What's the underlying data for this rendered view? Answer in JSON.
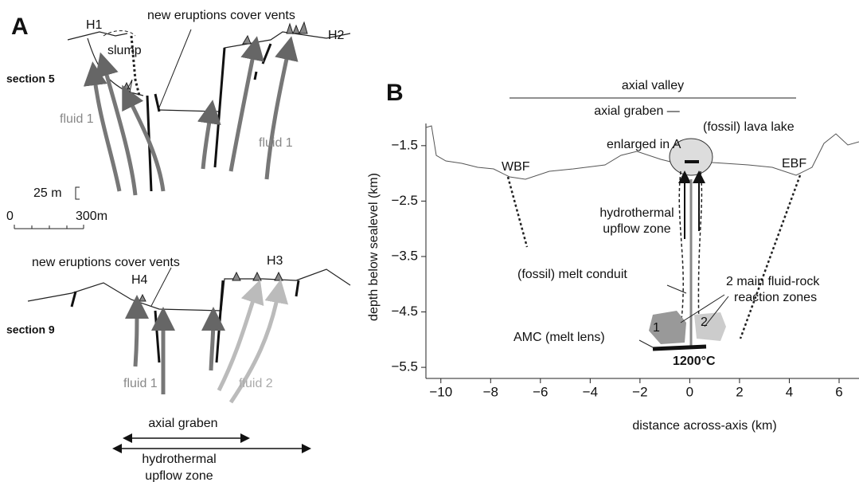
{
  "panel_a": {
    "label": "A",
    "section_5": {
      "label": "section 5",
      "h1": "H1",
      "h2": "H2",
      "annotation": "new eruptions cover vents",
      "slump": "slump",
      "fluid_left": "fluid 1",
      "fluid_right": "fluid 1"
    },
    "scale": {
      "vertical": "25 m",
      "zero": "0",
      "horizontal": "300m"
    },
    "section_9": {
      "label": "section 9",
      "annotation": "new eruptions cover vents",
      "h4": "H4",
      "h3": "H3",
      "fluid_left": "fluid 1",
      "fluid_right": "fluid 2"
    },
    "bottom": {
      "axial_graben": "axial graben",
      "hydrothermal_upflow": [
        "hydrothermal",
        "upflow zone"
      ]
    }
  },
  "panel_b": {
    "label": "B",
    "axial_valley": "axial valley",
    "axial_graben": "axial graben —",
    "lava_lake": "(fossil) lava lake",
    "enlarged": "enlarged in A",
    "wbf": "WBF",
    "ebf": "EBF",
    "upflow": [
      "hydrothermal",
      "upflow zone"
    ],
    "conduit": "(fossil) melt conduit",
    "reaction_zones": [
      "2 main fluid-rock",
      "reaction zones"
    ],
    "amc": "AMC (melt lens)",
    "zone_1": "1",
    "zone_2": "2",
    "temperature": "1200°C",
    "xlabel": "distance across-axis (km)",
    "ylabel": "depth below sealevel (km)",
    "xlim": [
      -10.6,
      6.8
    ],
    "ylim": [
      -5.7,
      -1.1
    ],
    "xticks": [
      {
        "value": -10,
        "label": "−10"
      },
      {
        "value": -8,
        "label": "−8"
      },
      {
        "value": -6,
        "label": "−6"
      },
      {
        "value": -4,
        "label": "−4"
      },
      {
        "value": -2,
        "label": "−2"
      },
      0,
      2,
      4,
      6
    ],
    "yticks": [
      {
        "value": -1.5,
        "label": "−1.5"
      },
      {
        "value": -2.5,
        "label": "−2.5"
      },
      {
        "value": -3.5,
        "label": "−3.5"
      },
      {
        "value": -4.5,
        "label": "−4.5"
      },
      {
        "value": -5.5,
        "label": "−5.5"
      }
    ]
  }
}
